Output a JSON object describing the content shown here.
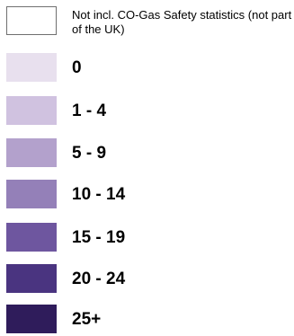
{
  "legend": {
    "items": [
      {
        "label": "Not incl. CO-Gas Safety statistics (not part of the UK)",
        "color": "#ffffff",
        "outlined": true,
        "style": "small"
      },
      {
        "label": "0",
        "color": "#e8e0ee",
        "outlined": false,
        "style": "big"
      },
      {
        "label": "1 - 4",
        "color": "#d0c2e0",
        "outlined": false,
        "style": "big"
      },
      {
        "label": "5 - 9",
        "color": "#b3a1cc",
        "outlined": false,
        "style": "big"
      },
      {
        "label": "10 - 14",
        "color": "#9480b8",
        "outlined": false,
        "style": "big"
      },
      {
        "label": "15 - 19",
        "color": "#6e569f",
        "outlined": false,
        "style": "big"
      },
      {
        "label": "20 - 24",
        "color": "#4a3480",
        "outlined": false,
        "style": "big"
      },
      {
        "label": "25+",
        "color": "#2f1c5b",
        "outlined": false,
        "style": "big"
      }
    ]
  }
}
